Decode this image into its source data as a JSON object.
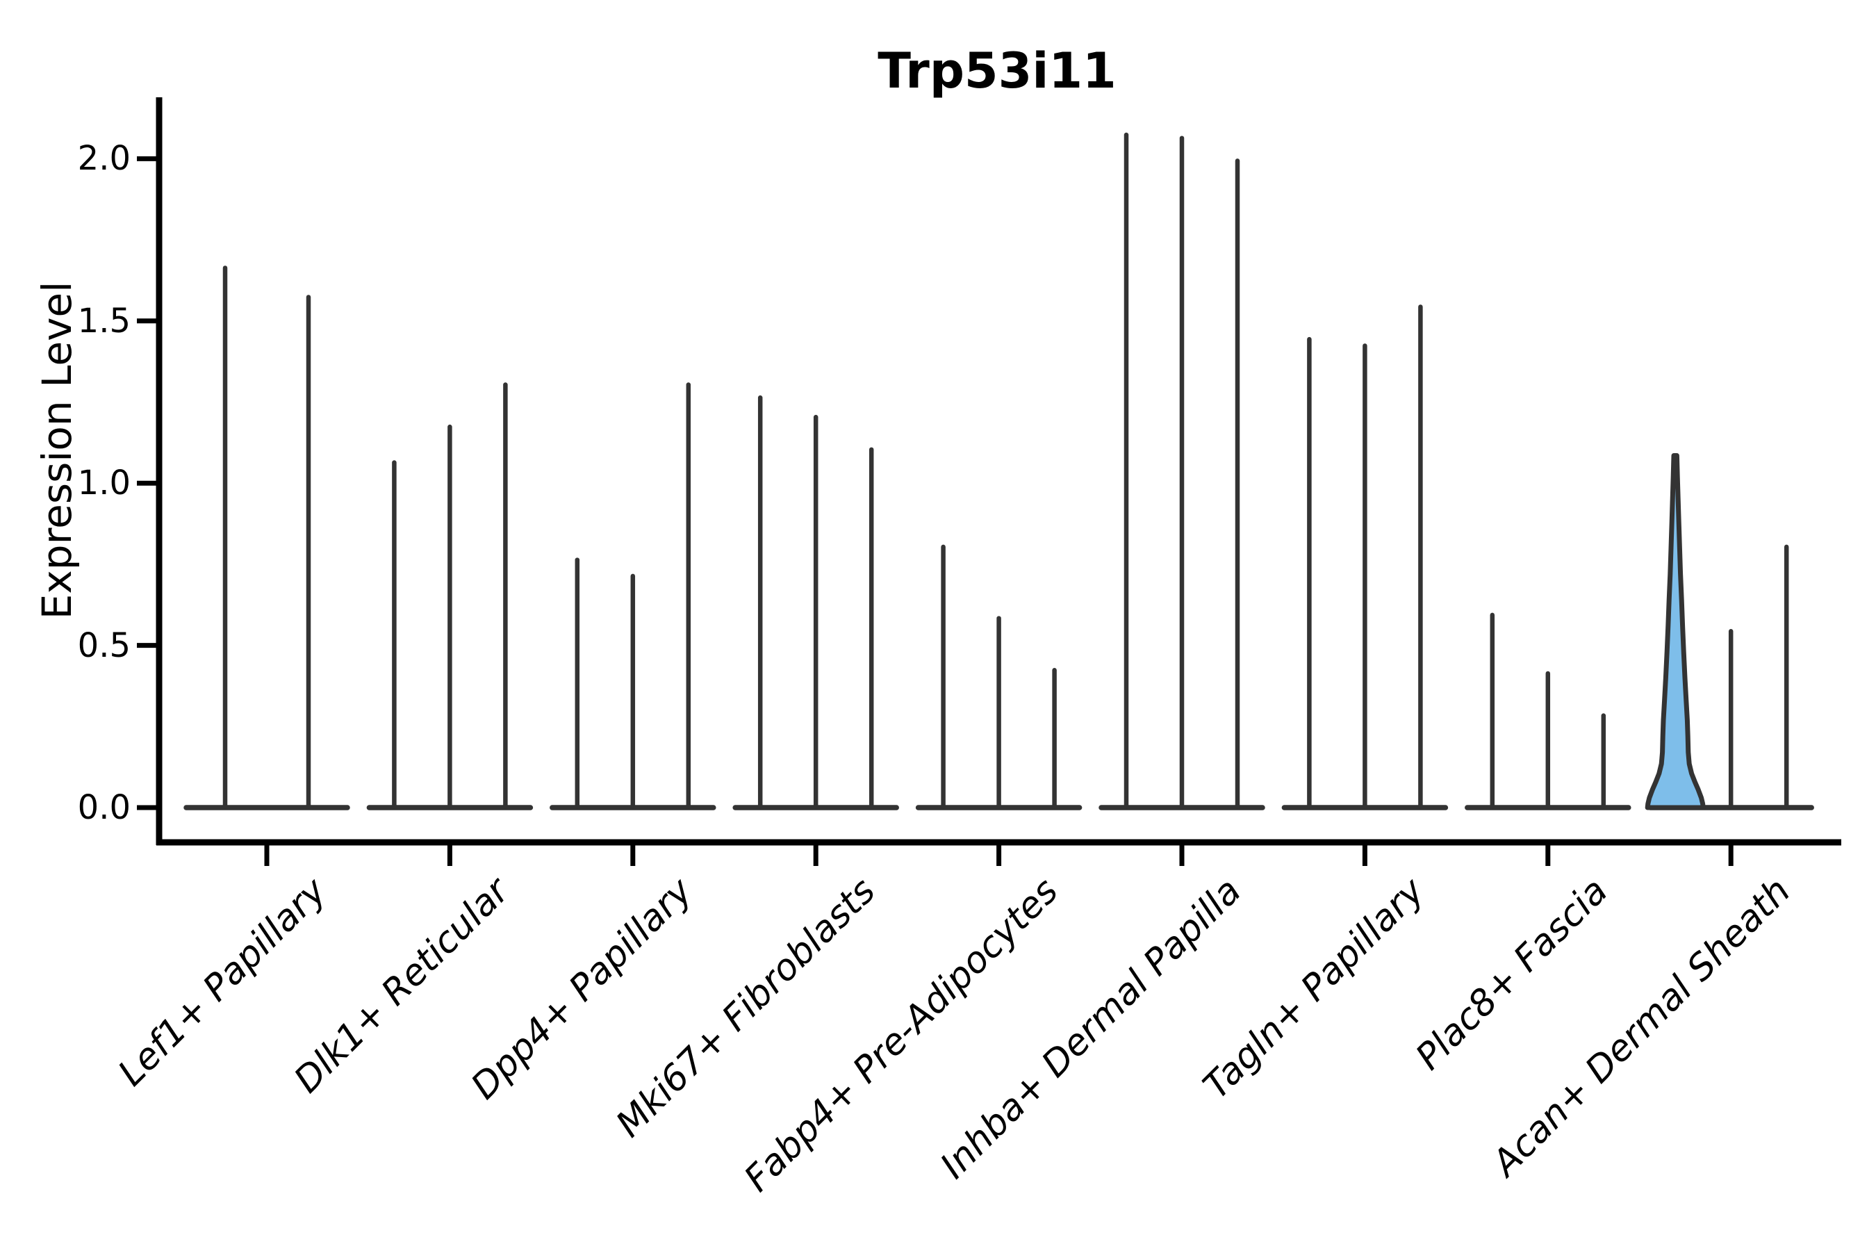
{
  "chart_data": {
    "type": "violin",
    "title": "Trp53i11",
    "ylabel": "Expression Level",
    "xlabel": "",
    "yticks": [
      0.0,
      0.5,
      1.0,
      1.5,
      2.0
    ],
    "yticklabels": [
      "0.0",
      "0.5",
      "1.0",
      "1.5",
      "2.0"
    ],
    "ylim": [
      0,
      2.19
    ],
    "grid": false,
    "legend": "none",
    "description": "Stacked-violin style expression plot; each category holds thin violins (density collapsed to a spike at the max expression with a flat base at 0). One violin in Acan+ Dermal Sheath has visible density and is filled blue.",
    "groups": [
      {
        "label": "Lef1+ Papillary",
        "violin_maxima": [
          1.67,
          1.58
        ]
      },
      {
        "label": "Dlk1+ Reticular",
        "violin_maxima": [
          1.07,
          1.18,
          1.31
        ]
      },
      {
        "label": "Dpp4+ Papillary",
        "violin_maxima": [
          0.77,
          0.72,
          1.31
        ]
      },
      {
        "label": "Mki67+ Fibroblasts",
        "violin_maxima": [
          1.27,
          1.21,
          1.11
        ]
      },
      {
        "label": "Fabp4+ Pre-Adipocytes",
        "violin_maxima": [
          0.81,
          0.59,
          0.43
        ]
      },
      {
        "label": "Inhba+ Dermal Papilla",
        "violin_maxima": [
          2.08,
          2.07,
          2.0
        ]
      },
      {
        "label": "Tagln+ Papillary",
        "violin_maxima": [
          1.45,
          1.43,
          1.55
        ]
      },
      {
        "label": "Plac8+ Fascia",
        "violin_maxima": [
          0.6,
          0.42,
          0.29
        ]
      },
      {
        "label": "Acan+ Dermal Sheath",
        "violin_maxima": [
          1.09,
          0.55,
          0.81
        ],
        "highlight_index": 0
      }
    ],
    "highlight": {
      "fill_color": "#7EBEEA",
      "outline_color": "#333333",
      "max_value": 1.09,
      "profile_value_halfwidth": [
        [
          1.085,
          0.055
        ],
        [
          1.02,
          0.075
        ],
        [
          0.95,
          0.1
        ],
        [
          0.88,
          0.125
        ],
        [
          0.8,
          0.155
        ],
        [
          0.72,
          0.185
        ],
        [
          0.64,
          0.225
        ],
        [
          0.56,
          0.26
        ],
        [
          0.48,
          0.3
        ],
        [
          0.4,
          0.345
        ],
        [
          0.33,
          0.39
        ],
        [
          0.27,
          0.43
        ],
        [
          0.22,
          0.45
        ],
        [
          0.17,
          0.465
        ],
        [
          0.135,
          0.5
        ],
        [
          0.105,
          0.585
        ],
        [
          0.08,
          0.7
        ],
        [
          0.055,
          0.825
        ],
        [
          0.03,
          0.935
        ],
        [
          0.012,
          0.985
        ],
        [
          0.0,
          1.0
        ]
      ]
    },
    "colors": {
      "violin_ink": "#333333",
      "axis_ink": "#000000",
      "background": "#ffffff"
    }
  }
}
